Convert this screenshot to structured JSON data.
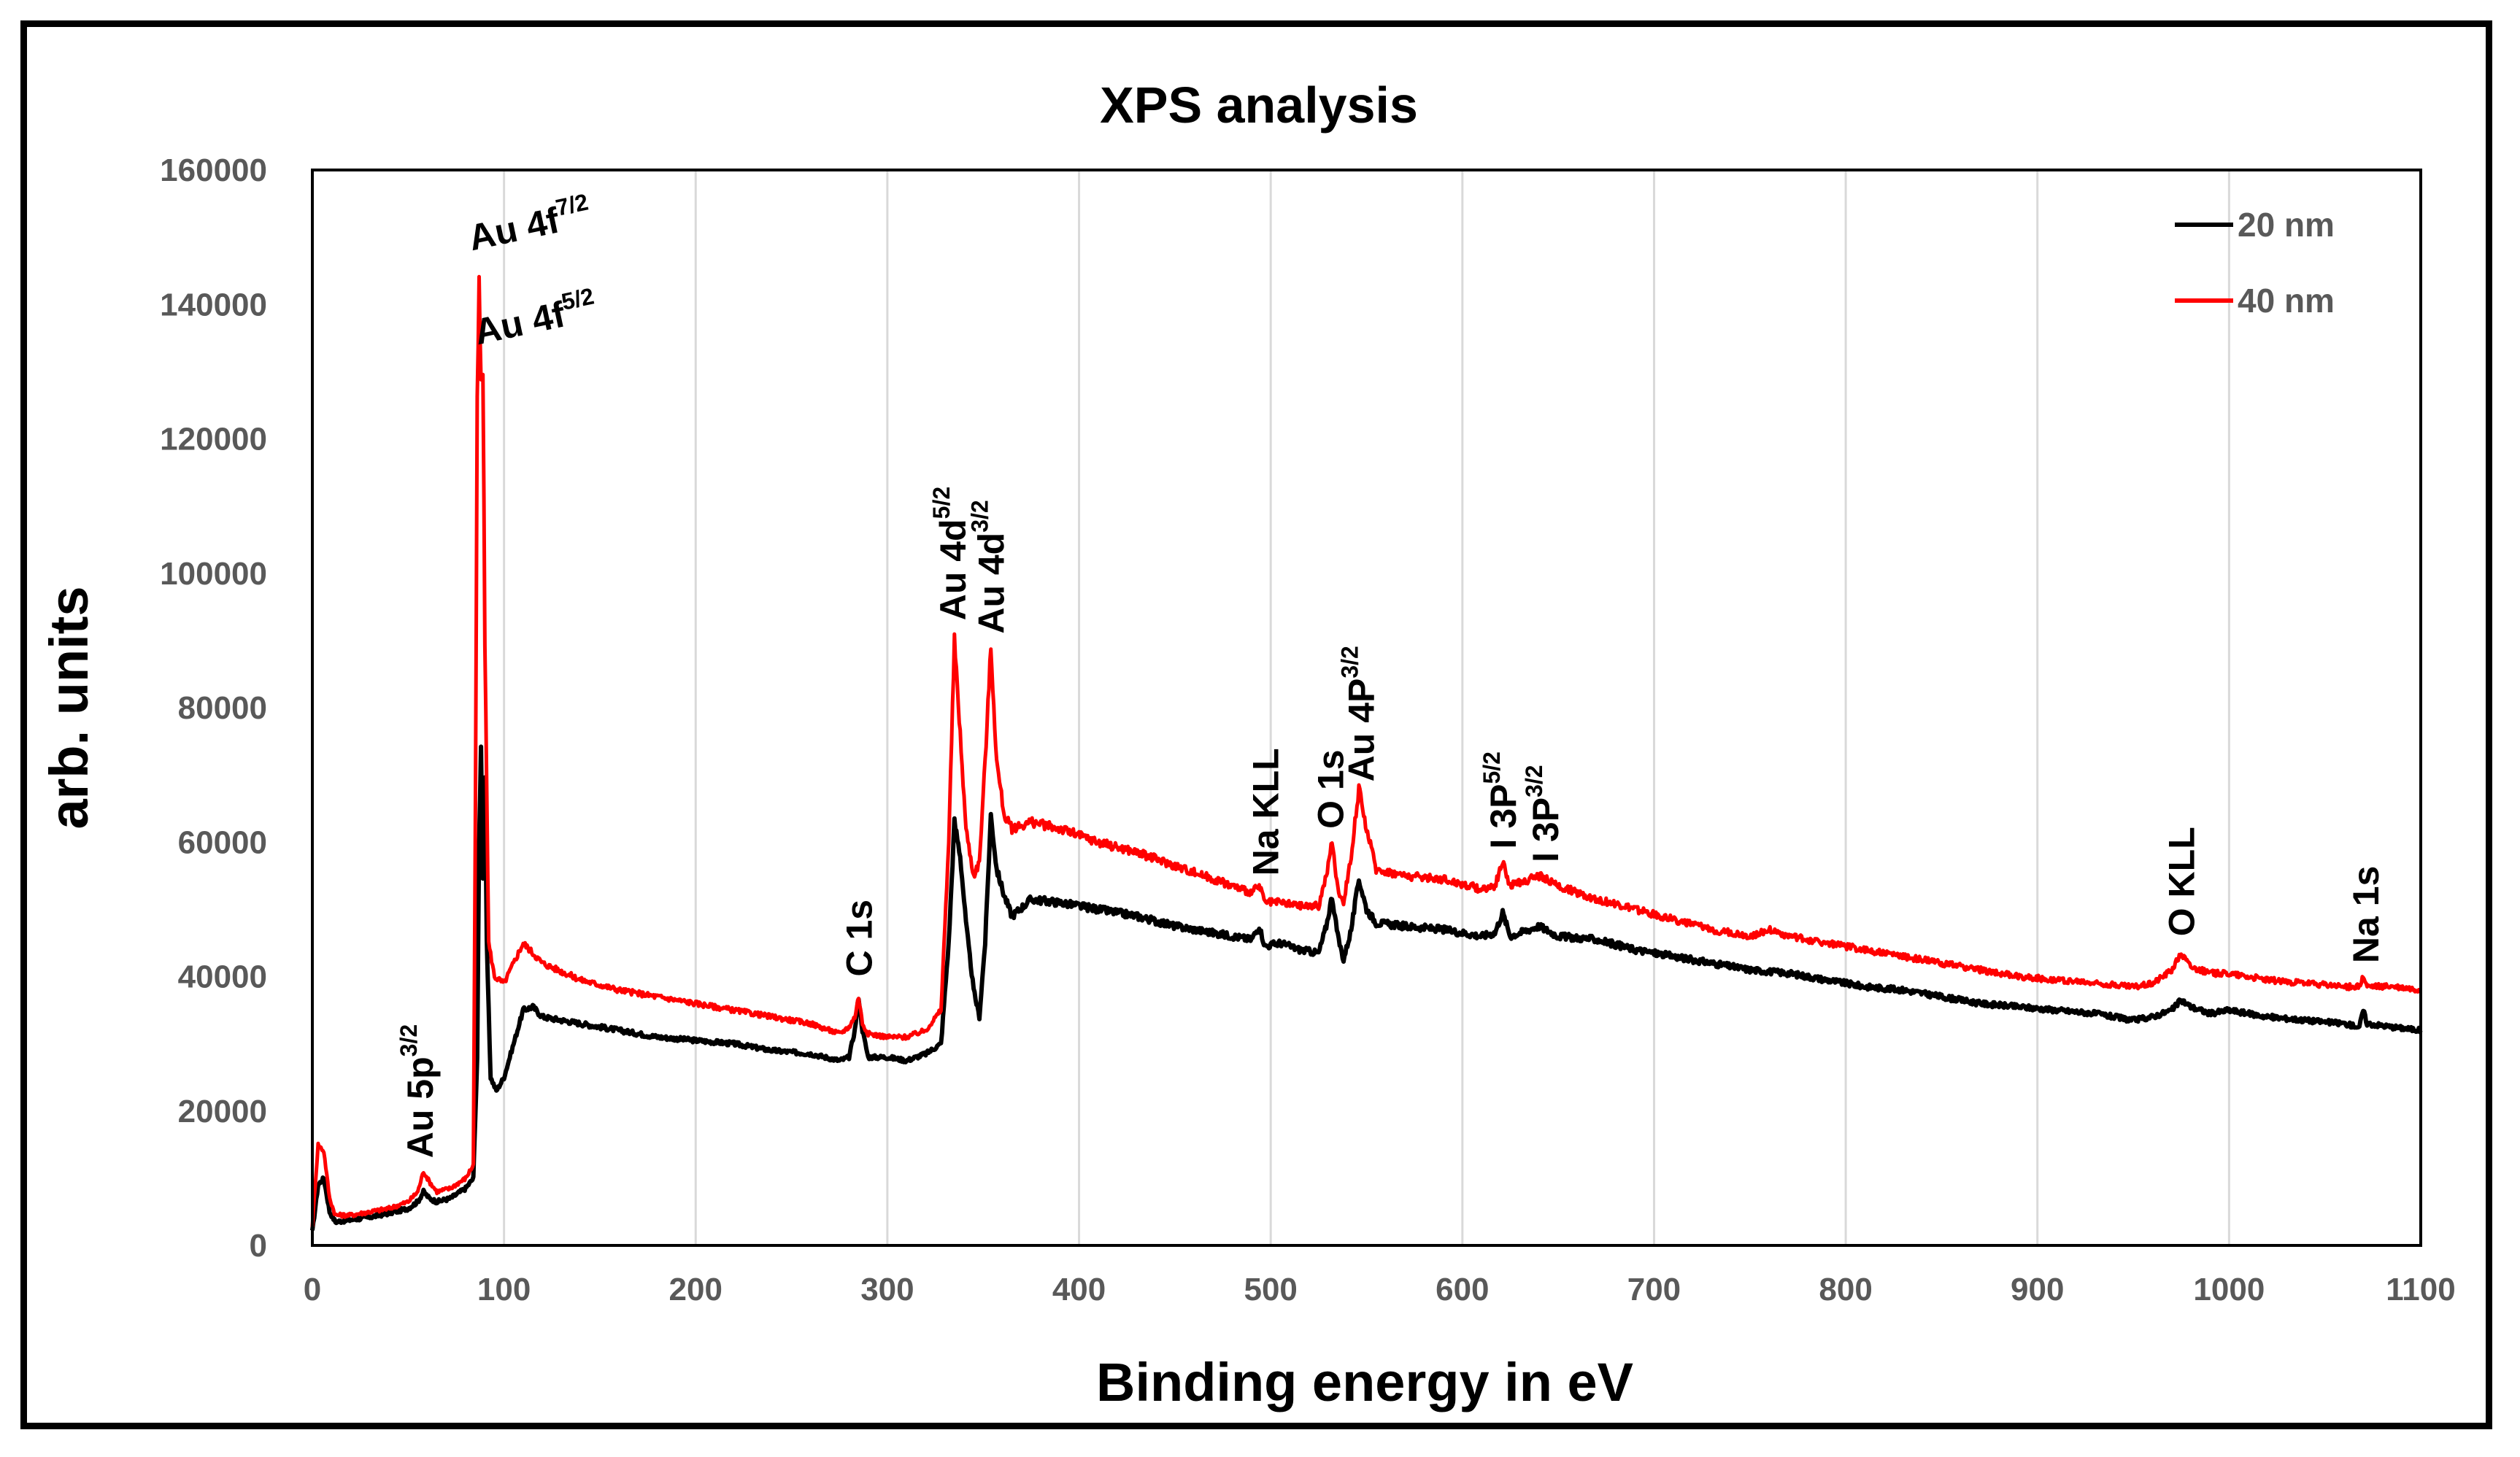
{
  "chart_data": {
    "type": "line",
    "title": "XPS analysis",
    "xlabel": "Binding energy in eV",
    "ylabel": "arb. units",
    "xlim": [
      0,
      1100
    ],
    "ylim": [
      0,
      160000
    ],
    "x_ticks": [
      "0",
      "100",
      "200",
      "300",
      "400",
      "500",
      "600",
      "700",
      "800",
      "900",
      "1000",
      "1100"
    ],
    "y_ticks": [
      "0",
      "20000",
      "40000",
      "60000",
      "80000",
      "100000",
      "120000",
      "140000",
      "160000"
    ],
    "grid": "vertical",
    "legend_position": "top-right",
    "series": [
      {
        "name": "20 nm",
        "color": "#000000",
        "points": [
          [
            0,
            2000
          ],
          [
            3,
            9000
          ],
          [
            6,
            10000
          ],
          [
            9,
            5000
          ],
          [
            12,
            3500
          ],
          [
            20,
            3800
          ],
          [
            30,
            4200
          ],
          [
            40,
            4800
          ],
          [
            50,
            5500
          ],
          [
            55,
            6500
          ],
          [
            58,
            8000
          ],
          [
            61,
            7000
          ],
          [
            65,
            6500
          ],
          [
            72,
            7000
          ],
          [
            80,
            8500
          ],
          [
            84,
            10000
          ],
          [
            86,
            28000
          ],
          [
            87,
            60000
          ],
          [
            88,
            74000
          ],
          [
            89,
            55000
          ],
          [
            90,
            70000
          ],
          [
            91,
            45000
          ],
          [
            93,
            25000
          ],
          [
            96,
            23000
          ],
          [
            100,
            25000
          ],
          [
            105,
            30000
          ],
          [
            110,
            35000
          ],
          [
            115,
            35500
          ],
          [
            120,
            34000
          ],
          [
            140,
            33000
          ],
          [
            160,
            32000
          ],
          [
            180,
            31000
          ],
          [
            200,
            30500
          ],
          [
            220,
            30000
          ],
          [
            240,
            29000
          ],
          [
            260,
            28500
          ],
          [
            275,
            27500
          ],
          [
            280,
            28000
          ],
          [
            283,
            32000
          ],
          [
            285,
            37000
          ],
          [
            287,
            32000
          ],
          [
            290,
            28000
          ],
          [
            300,
            28000
          ],
          [
            310,
            27500
          ],
          [
            320,
            28500
          ],
          [
            328,
            30000
          ],
          [
            332,
            45000
          ],
          [
            335,
            63000
          ],
          [
            338,
            58000
          ],
          [
            341,
            48000
          ],
          [
            345,
            38000
          ],
          [
            348,
            34000
          ],
          [
            351,
            45000
          ],
          [
            354,
            64000
          ],
          [
            357,
            56000
          ],
          [
            361,
            52000
          ],
          [
            365,
            49000
          ],
          [
            375,
            51500
          ],
          [
            390,
            51000
          ],
          [
            410,
            50000
          ],
          [
            430,
            49000
          ],
          [
            450,
            47500
          ],
          [
            470,
            46500
          ],
          [
            490,
            45500
          ],
          [
            494,
            47500
          ],
          [
            497,
            44500
          ],
          [
            505,
            45000
          ],
          [
            515,
            44000
          ],
          [
            525,
            43500
          ],
          [
            529,
            47500
          ],
          [
            532,
            52000
          ],
          [
            535,
            46000
          ],
          [
            538,
            42500
          ],
          [
            542,
            47000
          ],
          [
            546,
            54500
          ],
          [
            550,
            50000
          ],
          [
            555,
            48000
          ],
          [
            570,
            47500
          ],
          [
            590,
            47000
          ],
          [
            610,
            46000
          ],
          [
            617,
            46500
          ],
          [
            621,
            49500
          ],
          [
            625,
            46000
          ],
          [
            630,
            46500
          ],
          [
            640,
            47500
          ],
          [
            650,
            46000
          ],
          [
            670,
            45500
          ],
          [
            690,
            44000
          ],
          [
            710,
            43000
          ],
          [
            730,
            42000
          ],
          [
            750,
            41000
          ],
          [
            770,
            40500
          ],
          [
            790,
            39500
          ],
          [
            810,
            38500
          ],
          [
            830,
            38000
          ],
          [
            850,
            37000
          ],
          [
            870,
            36000
          ],
          [
            890,
            35500
          ],
          [
            910,
            35000
          ],
          [
            930,
            34500
          ],
          [
            950,
            33500
          ],
          [
            960,
            34000
          ],
          [
            970,
            35000
          ],
          [
            975,
            36500
          ],
          [
            980,
            35500
          ],
          [
            990,
            34500
          ],
          [
            1000,
            35000
          ],
          [
            1010,
            34500
          ],
          [
            1020,
            34000
          ],
          [
            1040,
            33500
          ],
          [
            1060,
            33000
          ],
          [
            1068,
            32500
          ],
          [
            1070,
            35000
          ],
          [
            1072,
            33000
          ],
          [
            1085,
            32500
          ],
          [
            1100,
            32000
          ]
        ]
      },
      {
        "name": "40 nm",
        "color": "#ff0000",
        "points": [
          [
            0,
            3000
          ],
          [
            3,
            15000
          ],
          [
            6,
            14000
          ],
          [
            9,
            7000
          ],
          [
            12,
            4500
          ],
          [
            20,
            4500
          ],
          [
            30,
            5000
          ],
          [
            40,
            5500
          ],
          [
            50,
            6500
          ],
          [
            55,
            8000
          ],
          [
            58,
            11000
          ],
          [
            61,
            9500
          ],
          [
            65,
            8000
          ],
          [
            72,
            8500
          ],
          [
            80,
            10000
          ],
          [
            84,
            12000
          ],
          [
            85,
            60000
          ],
          [
            86,
            125000
          ],
          [
            87,
            143000
          ],
          [
            88,
            128000
          ],
          [
            89,
            130000
          ],
          [
            90,
            90000
          ],
          [
            92,
            45000
          ],
          [
            95,
            40000
          ],
          [
            100,
            39000
          ],
          [
            105,
            42000
          ],
          [
            110,
            45000
          ],
          [
            115,
            43500
          ],
          [
            120,
            42000
          ],
          [
            140,
            39500
          ],
          [
            160,
            38000
          ],
          [
            180,
            37000
          ],
          [
            200,
            36000
          ],
          [
            220,
            35000
          ],
          [
            240,
            34000
          ],
          [
            260,
            33000
          ],
          [
            275,
            31500
          ],
          [
            280,
            32500
          ],
          [
            283,
            34000
          ],
          [
            285,
            37000
          ],
          [
            287,
            33000
          ],
          [
            290,
            31500
          ],
          [
            300,
            31000
          ],
          [
            310,
            31000
          ],
          [
            320,
            32000
          ],
          [
            328,
            35000
          ],
          [
            332,
            60000
          ],
          [
            335,
            90000
          ],
          [
            338,
            76000
          ],
          [
            341,
            62000
          ],
          [
            345,
            55000
          ],
          [
            348,
            57000
          ],
          [
            351,
            72000
          ],
          [
            354,
            89000
          ],
          [
            357,
            72000
          ],
          [
            361,
            64000
          ],
          [
            365,
            62000
          ],
          [
            375,
            63000
          ],
          [
            390,
            62000
          ],
          [
            410,
            60000
          ],
          [
            430,
            58500
          ],
          [
            450,
            56500
          ],
          [
            470,
            54500
          ],
          [
            490,
            52500
          ],
          [
            494,
            53500
          ],
          [
            497,
            51000
          ],
          [
            505,
            51000
          ],
          [
            515,
            50500
          ],
          [
            525,
            50500
          ],
          [
            529,
            55000
          ],
          [
            532,
            60000
          ],
          [
            535,
            53000
          ],
          [
            538,
            51000
          ],
          [
            542,
            58000
          ],
          [
            546,
            68000
          ],
          [
            550,
            62000
          ],
          [
            555,
            56000
          ],
          [
            570,
            55000
          ],
          [
            590,
            54500
          ],
          [
            610,
            53000
          ],
          [
            617,
            53500
          ],
          [
            621,
            57000
          ],
          [
            625,
            53500
          ],
          [
            630,
            54000
          ],
          [
            640,
            55000
          ],
          [
            650,
            53500
          ],
          [
            670,
            51500
          ],
          [
            690,
            50000
          ],
          [
            710,
            48500
          ],
          [
            730,
            47000
          ],
          [
            750,
            46000
          ],
          [
            760,
            47000
          ],
          [
            770,
            46000
          ],
          [
            790,
            45000
          ],
          [
            810,
            44000
          ],
          [
            830,
            43000
          ],
          [
            850,
            42000
          ],
          [
            870,
            41000
          ],
          [
            890,
            40000
          ],
          [
            910,
            39500
          ],
          [
            930,
            39000
          ],
          [
            950,
            38500
          ],
          [
            960,
            39000
          ],
          [
            970,
            41000
          ],
          [
            975,
            43500
          ],
          [
            980,
            41500
          ],
          [
            990,
            40500
          ],
          [
            1000,
            40500
          ],
          [
            1010,
            40000
          ],
          [
            1020,
            39500
          ],
          [
            1040,
            39000
          ],
          [
            1060,
            38500
          ],
          [
            1068,
            38500
          ],
          [
            1070,
            40000
          ],
          [
            1072,
            38500
          ],
          [
            1085,
            38500
          ],
          [
            1100,
            38000
          ]
        ]
      }
    ],
    "annotations": [
      {
        "base": "Au 4f",
        "sup": "7/2",
        "x": 87,
        "y": 148000
      },
      {
        "base": "Au 4f",
        "sup": "5/2",
        "x": 90,
        "y": 134000
      },
      {
        "base": "Au 5p",
        "sup": "3/2",
        "x": 56,
        "y": 13000
      },
      {
        "base": "C 1s",
        "sup": "",
        "x": 285,
        "y": 40000
      },
      {
        "base": "Au 4d",
        "sup": "5/2",
        "x": 334,
        "y": 93000
      },
      {
        "base": "Au 4d",
        "sup": "3/2",
        "x": 354,
        "y": 91000
      },
      {
        "base": "Na KLL",
        "sup": "",
        "x": 497,
        "y": 55000
      },
      {
        "base": "O 1s",
        "sup": "",
        "x": 531,
        "y": 62000
      },
      {
        "base": "Au 4P",
        "sup": "3/2",
        "x": 547,
        "y": 69000
      },
      {
        "base": "I 3P",
        "sup": "5/2",
        "x": 621,
        "y": 59000
      },
      {
        "base": "I 3P",
        "sup": "3/2",
        "x": 643,
        "y": 57000
      },
      {
        "base": "O KLL",
        "sup": "",
        "x": 975,
        "y": 46000
      },
      {
        "base": "Na 1s",
        "sup": "",
        "x": 1071,
        "y": 42000
      }
    ]
  }
}
